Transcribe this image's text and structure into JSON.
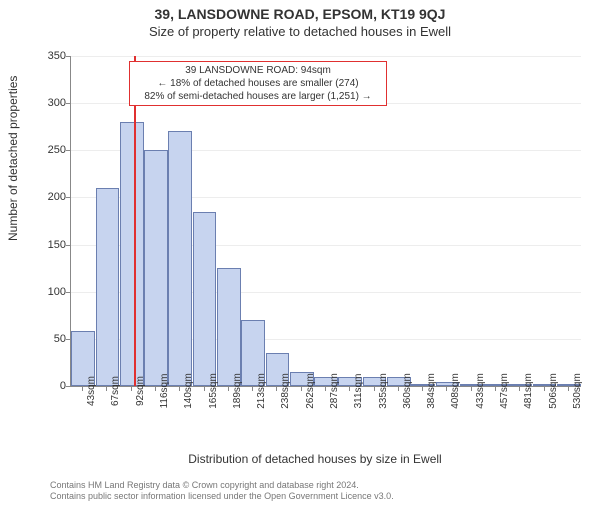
{
  "title": "39, LANSDOWNE ROAD, EPSOM, KT19 9QJ",
  "subtitle": "Size of property relative to detached houses in Ewell",
  "ylabel": "Number of detached properties",
  "xlabel": "Distribution of detached houses by size in Ewell",
  "chart": {
    "type": "histogram",
    "ylim": [
      0,
      350
    ],
    "ytick_step": 50,
    "background_color": "#ffffff",
    "bar_fill": "#c7d4ef",
    "bar_border": "#6b7fb0",
    "marker_color": "#e03030",
    "marker_x_value": 94,
    "categories": [
      "43sqm",
      "67sqm",
      "92sqm",
      "116sqm",
      "140sqm",
      "165sqm",
      "189sqm",
      "213sqm",
      "238sqm",
      "262sqm",
      "287sqm",
      "311sqm",
      "335sqm",
      "360sqm",
      "384sqm",
      "408sqm",
      "433sqm",
      "457sqm",
      "481sqm",
      "506sqm",
      "530sqm"
    ],
    "values": [
      58,
      210,
      280,
      250,
      270,
      185,
      125,
      70,
      35,
      15,
      10,
      10,
      10,
      10,
      2,
      4,
      2,
      2,
      2,
      2,
      2
    ]
  },
  "annotation": {
    "line1": "39 LANSDOWNE ROAD: 94sqm",
    "line2": "← 18% of detached houses are smaller (274)",
    "line3": "82% of semi-detached houses are larger (1,251) →"
  },
  "footer_line1": "Contains HM Land Registry data © Crown copyright and database right 2024.",
  "footer_line2": "Contains public sector information licensed under the Open Government Licence v3.0."
}
